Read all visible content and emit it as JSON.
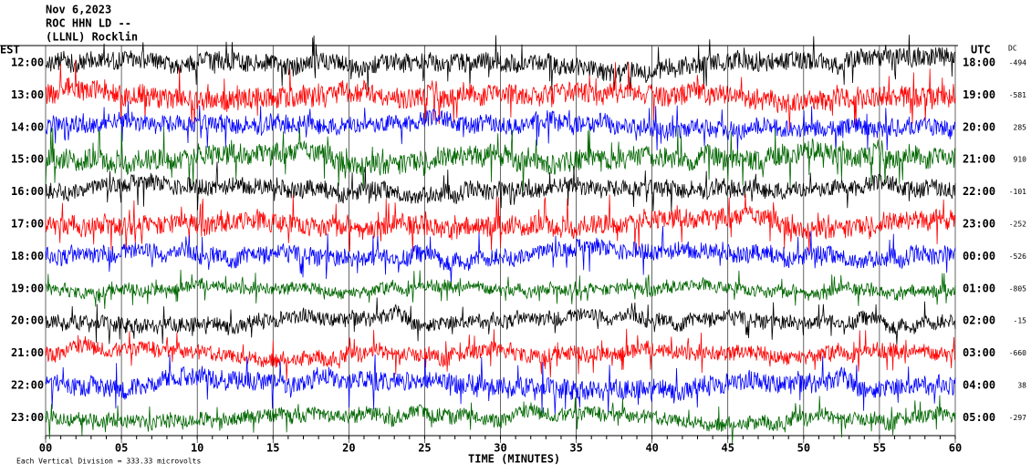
{
  "header": {
    "date": "Nov 6,2023",
    "station": "ROC HHN LD --",
    "network": "(LLNL) Rocklin"
  },
  "left_axis_title": "EST",
  "right_axis_title": "UTC",
  "dc_title": "DC",
  "rows": [
    {
      "est": "12:00",
      "utc": "18:00",
      "dc": "-494"
    },
    {
      "est": "13:00",
      "utc": "19:00",
      "dc": "-581"
    },
    {
      "est": "14:00",
      "utc": "20:00",
      "dc": "285"
    },
    {
      "est": "15:00",
      "utc": "21:00",
      "dc": "910"
    },
    {
      "est": "16:00",
      "utc": "22:00",
      "dc": "-101"
    },
    {
      "est": "17:00",
      "utc": "23:00",
      "dc": "-252"
    },
    {
      "est": "18:00",
      "utc": "00:00",
      "dc": "-526"
    },
    {
      "est": "19:00",
      "utc": "01:00",
      "dc": "-805"
    },
    {
      "est": "20:00",
      "utc": "02:00",
      "dc": "-15"
    },
    {
      "est": "21:00",
      "utc": "03:00",
      "dc": "-660"
    },
    {
      "est": "22:00",
      "utc": "04:00",
      "dc": "38"
    },
    {
      "est": "23:00",
      "utc": "05:00",
      "dc": "-297"
    }
  ],
  "x_ticks": [
    "00",
    "05",
    "10",
    "15",
    "20",
    "25",
    "30",
    "35",
    "40",
    "45",
    "50",
    "55",
    "60"
  ],
  "x_title": "TIME (MINUTES)",
  "footer": "Each Vertical Division =  333.33 microvolts"
}
